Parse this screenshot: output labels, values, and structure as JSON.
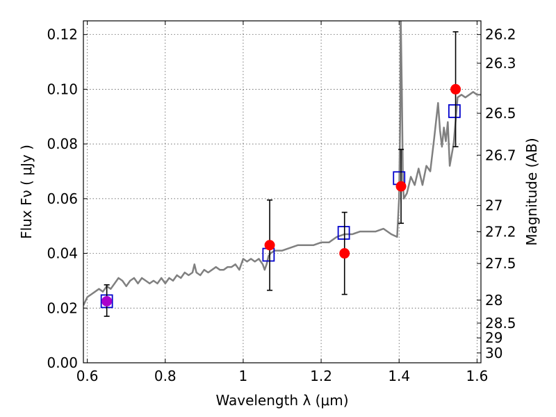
{
  "chart_data": {
    "type": "scatter",
    "title": "",
    "xlabel": "Wavelength  λ (μm)",
    "ylabel": "Flux  Fν  ( μJy )",
    "ylabel_right": "Magnitude (AB)",
    "xlim": [
      0.59,
      1.61
    ],
    "ylim": [
      0.0,
      0.125
    ],
    "grid": true,
    "x_ticks": [
      0.6,
      0.8,
      1.0,
      1.2,
      1.4,
      1.6
    ],
    "x_tick_labels": [
      "0.6",
      "0.8",
      "1",
      "1.2",
      "1.4",
      "1.6"
    ],
    "y_ticks": [
      0.0,
      0.02,
      0.04,
      0.06,
      0.08,
      0.1,
      0.12
    ],
    "y_tick_labels": [
      "0.00",
      "0.02",
      "0.04",
      "0.06",
      "0.08",
      "0.10",
      "0.12"
    ],
    "right_ticks": [
      {
        "flux": 0.12,
        "label": "26.2"
      },
      {
        "flux": 0.1095,
        "label": "26.3"
      },
      {
        "flux": 0.0912,
        "label": "26.5"
      },
      {
        "flux": 0.0759,
        "label": "26.7"
      },
      {
        "flux": 0.0575,
        "label": "27"
      },
      {
        "flux": 0.0479,
        "label": "27.2"
      },
      {
        "flux": 0.0363,
        "label": "27.5"
      },
      {
        "flux": 0.0229,
        "label": "28"
      },
      {
        "flux": 0.0145,
        "label": "28.5"
      },
      {
        "flux": 0.0091,
        "label": "29"
      },
      {
        "flux": 0.0036,
        "label": "30"
      }
    ],
    "series": [
      {
        "kind": "line",
        "color": "#808080",
        "x": [
          0.59,
          0.6,
          0.61,
          0.62,
          0.63,
          0.64,
          0.65,
          0.66,
          0.67,
          0.68,
          0.69,
          0.7,
          0.71,
          0.72,
          0.73,
          0.74,
          0.75,
          0.76,
          0.77,
          0.78,
          0.79,
          0.8,
          0.81,
          0.82,
          0.83,
          0.84,
          0.85,
          0.86,
          0.87,
          0.875,
          0.88,
          0.89,
          0.9,
          0.91,
          0.92,
          0.93,
          0.94,
          0.95,
          0.96,
          0.97,
          0.98,
          0.99,
          1.0,
          1.01,
          1.02,
          1.03,
          1.04,
          1.05,
          1.055,
          1.06,
          1.065,
          1.07,
          1.08,
          1.1,
          1.12,
          1.14,
          1.16,
          1.18,
          1.2,
          1.22,
          1.24,
          1.26,
          1.28,
          1.3,
          1.32,
          1.34,
          1.36,
          1.38,
          1.395,
          1.4,
          1.403,
          1.404,
          1.407,
          1.41,
          1.412,
          1.42,
          1.43,
          1.44,
          1.45,
          1.46,
          1.47,
          1.48,
          1.49,
          1.5,
          1.505,
          1.51,
          1.515,
          1.52,
          1.525,
          1.53,
          1.54,
          1.55,
          1.56,
          1.57,
          1.58,
          1.59,
          1.6,
          1.61
        ],
        "y": [
          0.021,
          0.024,
          0.025,
          0.026,
          0.027,
          0.026,
          0.028,
          0.027,
          0.029,
          0.031,
          0.03,
          0.028,
          0.03,
          0.031,
          0.029,
          0.031,
          0.03,
          0.029,
          0.03,
          0.029,
          0.031,
          0.029,
          0.031,
          0.03,
          0.032,
          0.031,
          0.033,
          0.032,
          0.033,
          0.036,
          0.033,
          0.032,
          0.034,
          0.033,
          0.034,
          0.035,
          0.034,
          0.034,
          0.035,
          0.035,
          0.036,
          0.034,
          0.038,
          0.037,
          0.038,
          0.037,
          0.038,
          0.036,
          0.034,
          0.036,
          0.039,
          0.04,
          0.041,
          0.041,
          0.042,
          0.043,
          0.043,
          0.043,
          0.044,
          0.044,
          0.046,
          0.047,
          0.047,
          0.048,
          0.048,
          0.048,
          0.049,
          0.047,
          0.046,
          0.06,
          0.09,
          0.128,
          0.1,
          0.065,
          0.06,
          0.062,
          0.068,
          0.065,
          0.071,
          0.065,
          0.072,
          0.07,
          0.082,
          0.095,
          0.085,
          0.079,
          0.086,
          0.081,
          0.088,
          0.072,
          0.08,
          0.097,
          0.098,
          0.097,
          0.098,
          0.099,
          0.098,
          0.098
        ]
      },
      {
        "kind": "open-squares",
        "color": "#0000cc",
        "x": [
          0.65,
          1.065,
          1.258,
          1.4,
          1.542
        ],
        "y": [
          0.0225,
          0.0395,
          0.0475,
          0.0675,
          0.092
        ]
      },
      {
        "kind": "points-with-errorbars",
        "color": "#ff0000",
        "x": [
          1.068,
          1.26,
          1.405,
          1.545
        ],
        "y": [
          0.043,
          0.04,
          0.0645,
          0.1
        ],
        "yerr_low": [
          0.0265,
          0.025,
          0.051,
          0.079
        ],
        "yerr_high": [
          0.0595,
          0.055,
          0.078,
          0.121
        ]
      },
      {
        "kind": "points-with-errorbars",
        "color": "#aa00cc",
        "x": [
          0.65
        ],
        "y": [
          0.0225
        ],
        "yerr_low": [
          0.017
        ],
        "yerr_high": [
          0.0285
        ]
      }
    ]
  }
}
